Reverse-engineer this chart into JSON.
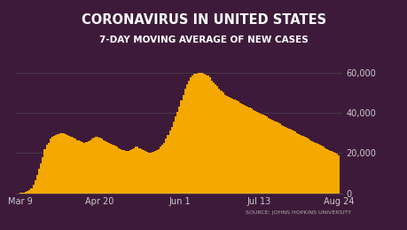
{
  "title": "CORONAVIRUS IN UNITED STATES",
  "subtitle": "7-DAY MOVING AVERAGE OF NEW CASES",
  "source": "SOURCE: JOHNS HOPKINS UNIVERSITY",
  "background_color": "#3d1a3a",
  "title_color": "#ffffff",
  "subtitle_color": "#ffffff",
  "subtitle_bg_color": "#cc0000",
  "bar_color": "#f5a800",
  "axis_label_color": "#cccccc",
  "grid_color": "#555555",
  "source_color": "#aaaaaa",
  "ytick_labels": [
    "0",
    "20,000",
    "40,000",
    "60,000"
  ],
  "ytick_values": [
    0,
    20000,
    40000,
    60000
  ],
  "xtick_labels": [
    "Mar 9",
    "Apr 20",
    "Jun 1",
    "Jul 13",
    "Aug 24"
  ],
  "xtick_positions": [
    0,
    42,
    84,
    126,
    168
  ],
  "ylim": [
    0,
    68000
  ],
  "y_values": [
    100,
    200,
    400,
    700,
    1000,
    1500,
    2500,
    4000,
    6500,
    9000,
    12000,
    15000,
    18000,
    22000,
    24000,
    25000,
    27000,
    28000,
    28500,
    29000,
    29500,
    30000,
    30000,
    29800,
    29500,
    29000,
    28500,
    28000,
    27500,
    27000,
    26500,
    26500,
    26000,
    25500,
    25000,
    25500,
    26000,
    26500,
    27000,
    27500,
    28000,
    28000,
    27500,
    27000,
    26500,
    26000,
    25500,
    25000,
    24500,
    24000,
    23500,
    23000,
    22500,
    22000,
    21500,
    21500,
    21000,
    21000,
    21500,
    22000,
    22500,
    23000,
    23000,
    22500,
    22000,
    21500,
    21000,
    20500,
    20000,
    20000,
    20500,
    21000,
    21500,
    22000,
    23000,
    24000,
    25000,
    27000,
    29000,
    31000,
    33000,
    35500,
    38000,
    40500,
    43000,
    46000,
    49000,
    52000,
    54000,
    56000,
    57500,
    58500,
    59200,
    59500,
    59600,
    59700,
    59800,
    59500,
    59000,
    58500,
    57500,
    56000,
    55000,
    54000,
    53000,
    52000,
    51000,
    50000,
    49000,
    48500,
    48000,
    47500,
    47000,
    46500,
    46000,
    45500,
    45000,
    44500,
    44000,
    43500,
    43000,
    42500,
    42000,
    41500,
    41000,
    40500,
    40000,
    39500,
    39000,
    38500,
    38000,
    37500,
    37000,
    36500,
    36000,
    35500,
    35000,
    34500,
    34000,
    33500,
    33000,
    32500,
    32000,
    31500,
    31000,
    30500,
    30000,
    29500,
    29000,
    28500,
    28000,
    27500,
    27000,
    26500,
    26000,
    25500,
    25000,
    24500,
    24000,
    23500,
    23000,
    22500,
    22000,
    21500,
    21000,
    20500,
    20000,
    19500,
    19000
  ]
}
